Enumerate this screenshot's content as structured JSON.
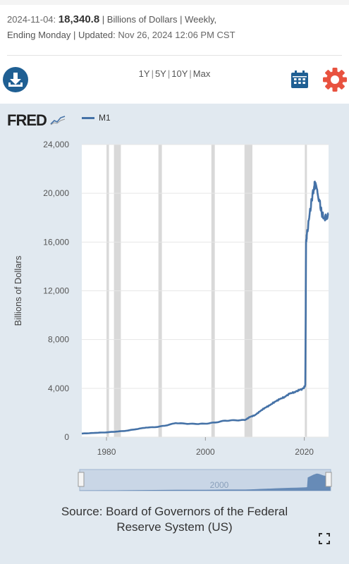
{
  "header": {
    "date": "2024-11-04:",
    "value": "18,340.8",
    "units": "| Billions of Dollars | Weekly,",
    "line2a": "Ending Monday | Updated:",
    "line2b": "Nov 26, 2024 12:06 PM CST"
  },
  "toolbar": {
    "ranges": [
      "1Y",
      "5Y",
      "10Y",
      "Max"
    ],
    "download_icon": "download-icon",
    "calendar_icon": "calendar-icon",
    "settings_icon": "gear-icon"
  },
  "logo": {
    "text": "FRED"
  },
  "legend": {
    "series_name": "M1"
  },
  "colors": {
    "line": "#4572a7",
    "panel": "#e1e9f0",
    "recession": "#cfcfcf",
    "accent": "#e8523f",
    "download": "#1f5f93"
  },
  "chart_data": {
    "type": "line",
    "title": "",
    "xlabel": "",
    "ylabel": "Billions of Dollars",
    "ylim": [
      0,
      24000
    ],
    "xlim": [
      1975,
      2024.9
    ],
    "yticks": [
      "0",
      "4,000",
      "8,000",
      "12,000",
      "16,000",
      "20,000",
      "24,000"
    ],
    "xticks": [
      "1980",
      "2000",
      "2020"
    ],
    "grid": true,
    "legend_position": "top-left",
    "recessions": [
      [
        1980.0,
        1980.5
      ],
      [
        1981.5,
        1982.9
      ],
      [
        1990.5,
        1991.2
      ],
      [
        2001.2,
        2001.9
      ],
      [
        2007.9,
        2009.5
      ],
      [
        2020.1,
        2020.4
      ]
    ],
    "series": [
      {
        "name": "M1",
        "x": [
          1975,
          1978,
          1980,
          1982,
          1984,
          1986,
          1988,
          1990,
          1992,
          1994,
          1996,
          1998,
          2000,
          2002,
          2004,
          2006,
          2008,
          2009,
          2010,
          2011,
          2012,
          2013,
          2014,
          2015,
          2016,
          2017,
          2018,
          2019,
          2019.9,
          2020.2,
          2020.35,
          2020.5,
          2021,
          2021.5,
          2022.0,
          2022.2,
          2022.6,
          2023.0,
          2023.5,
          2024.0,
          2024.5,
          2024.85
        ],
        "y": [
          290,
          350,
          390,
          450,
          520,
          650,
          780,
          820,
          950,
          1150,
          1100,
          1080,
          1100,
          1200,
          1350,
          1380,
          1400,
          1650,
          1800,
          2100,
          2400,
          2600,
          2900,
          3100,
          3300,
          3550,
          3700,
          3850,
          4000,
          4300,
          16000,
          16500,
          18000,
          19500,
          20600,
          20700,
          20300,
          19500,
          18400,
          18000,
          18100,
          18341
        ]
      }
    ]
  },
  "navigator": {
    "label": "2000"
  },
  "source": {
    "line1": "Source: Board of Governors of the Federal",
    "line2": "Reserve System (US)"
  }
}
